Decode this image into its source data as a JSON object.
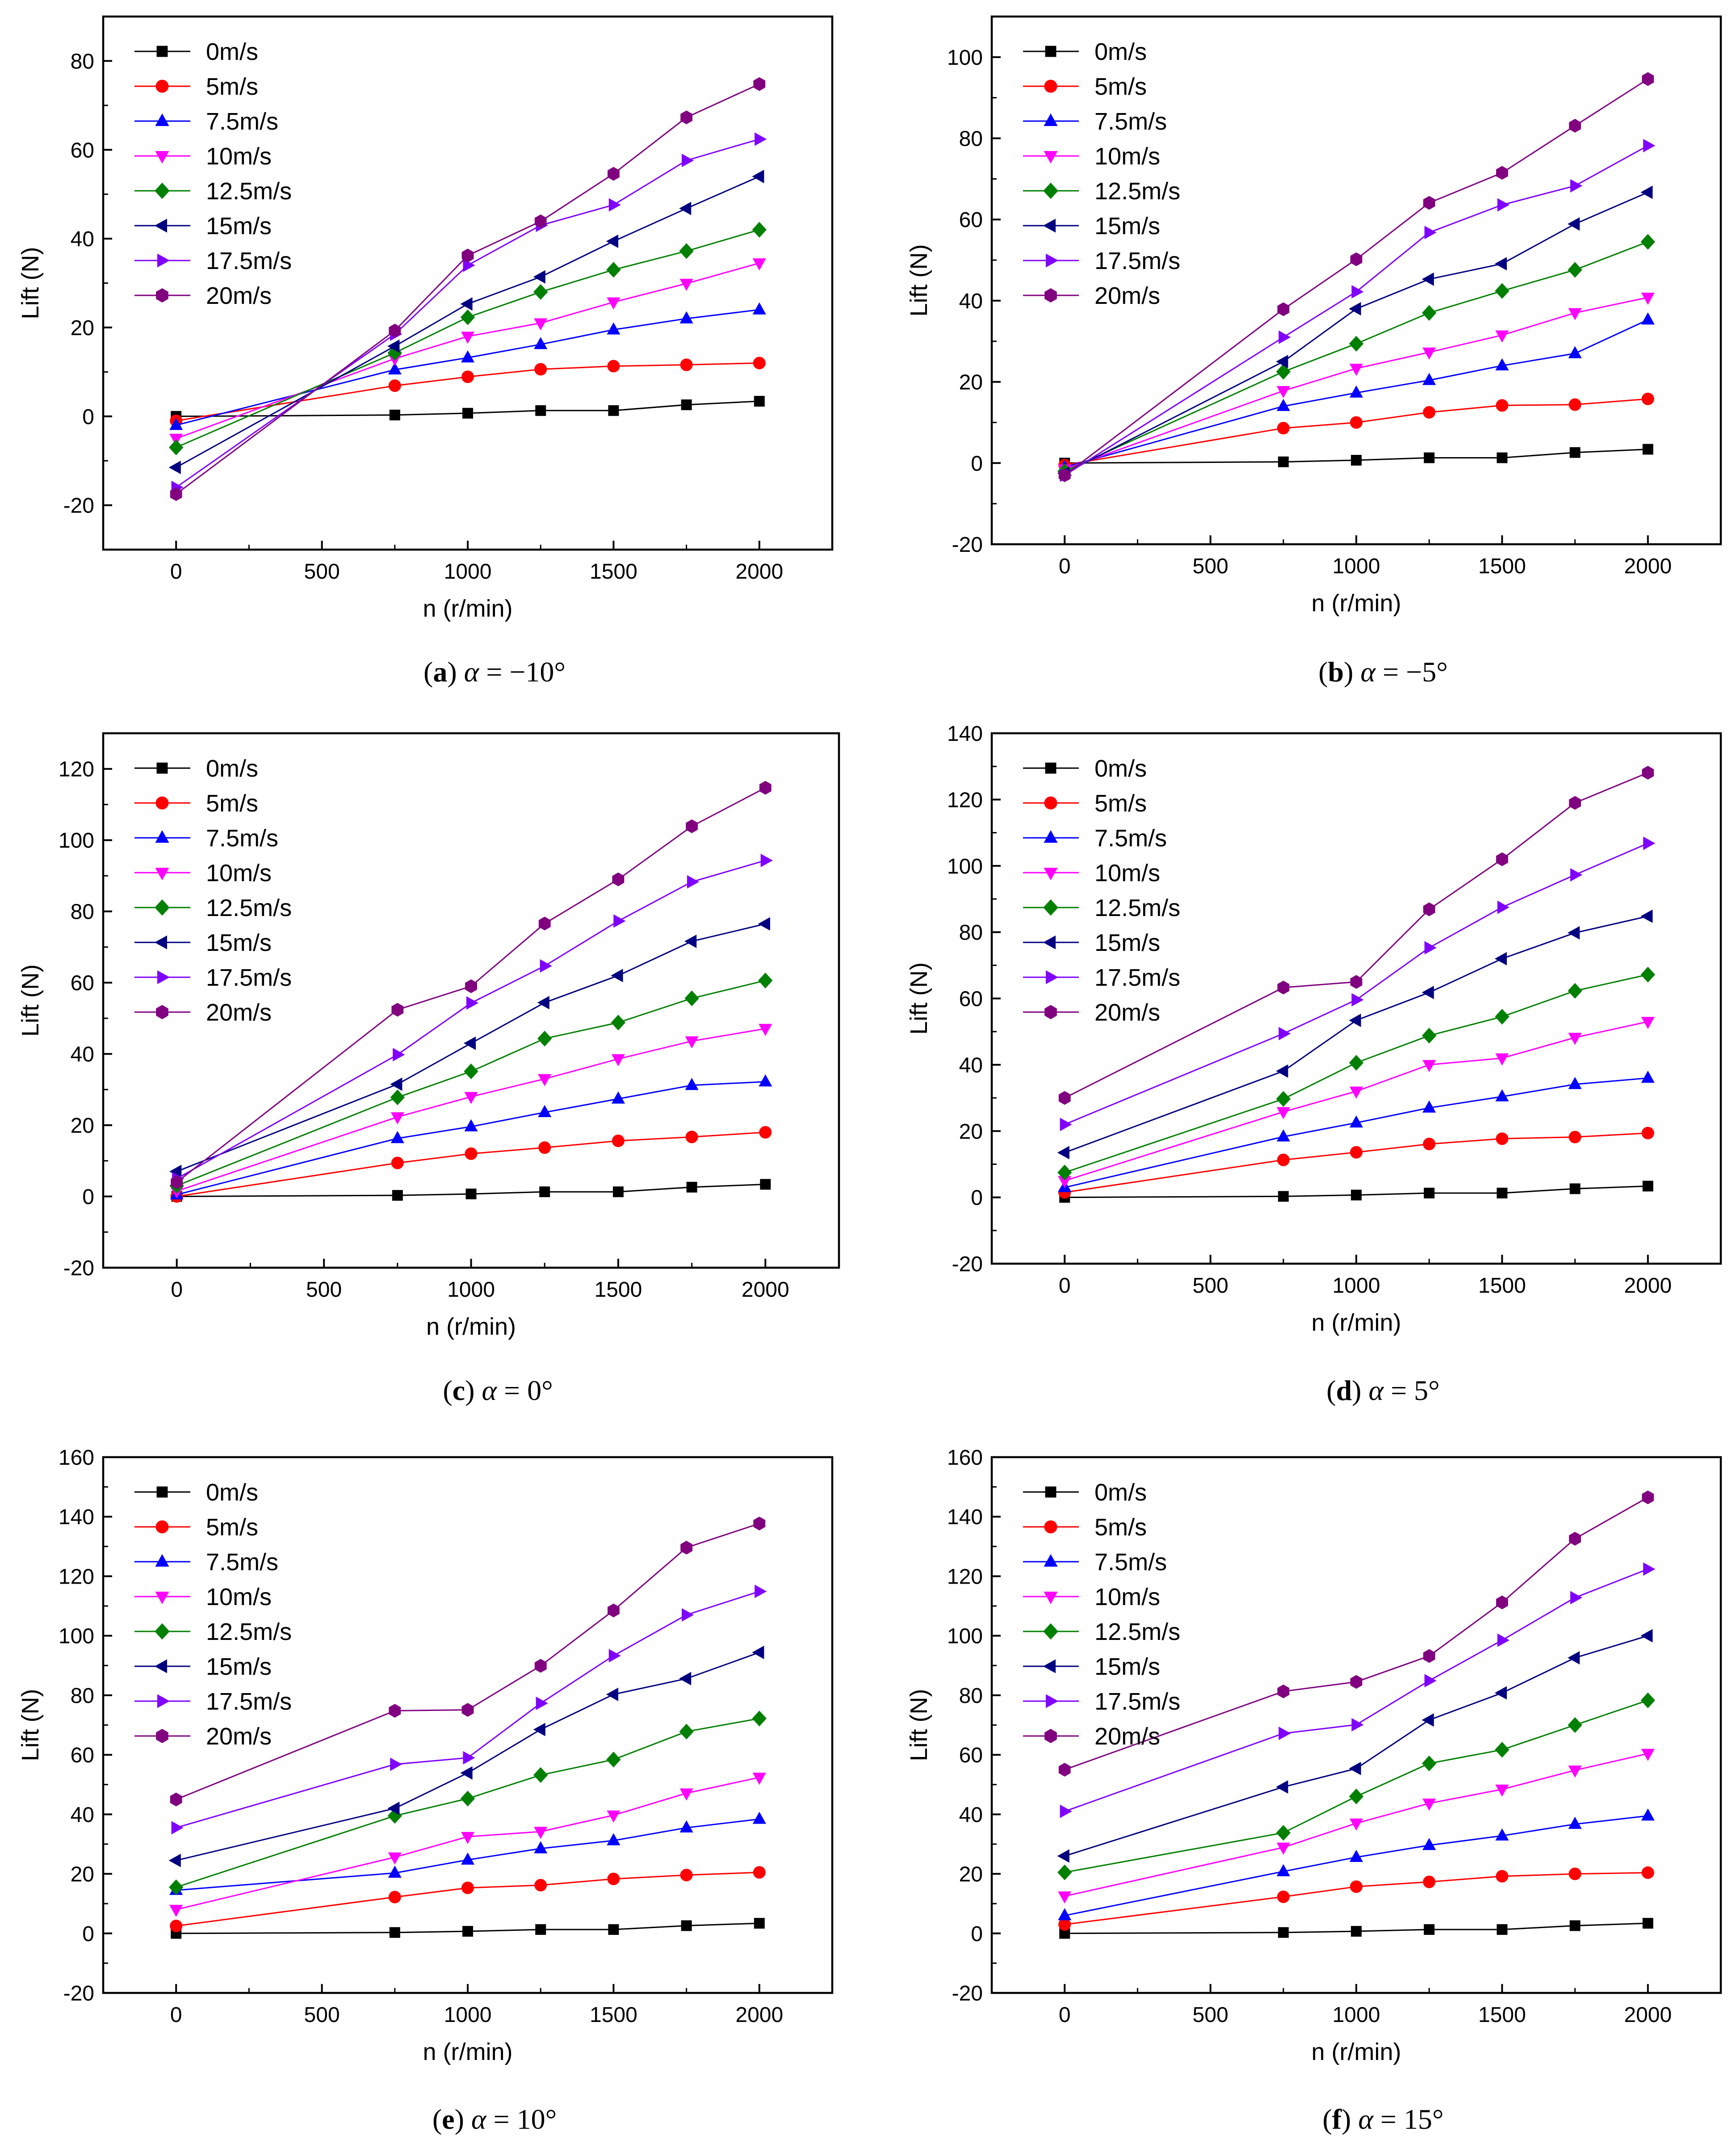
{
  "figure": {
    "x_axis_label": "n (r/min)",
    "y_axis_label": "Lift (N)",
    "legend": [
      "0m/s",
      "5m/s",
      "7.5m/s",
      "10m/s",
      "12.5m/s",
      "15m/s",
      "17.5m/s",
      "20m/s"
    ]
  },
  "series_styles": [
    {
      "name": "0m/s",
      "color": "#000000",
      "marker": "square"
    },
    {
      "name": "5m/s",
      "color": "#ff0000",
      "marker": "circle"
    },
    {
      "name": "7.5m/s",
      "color": "#0000ff",
      "marker": "triangle-up"
    },
    {
      "name": "10m/s",
      "color": "#ff00ff",
      "marker": "triangle-down"
    },
    {
      "name": "12.5m/s",
      "color": "#008000",
      "marker": "diamond"
    },
    {
      "name": "15m/s",
      "color": "#000080",
      "marker": "triangle-left"
    },
    {
      "name": "17.5m/s",
      "color": "#8000ff",
      "marker": "triangle-right"
    },
    {
      "name": "20m/s",
      "color": "#800080",
      "marker": "hexagon"
    }
  ],
  "chart_data": [
    {
      "type": "line",
      "caption": {
        "letter": "a",
        "text": "α = −10°"
      },
      "xlabel": "n (r/min)",
      "ylabel": "Lift (N)",
      "xlim": [
        -250,
        2250
      ],
      "ylim": [
        -30,
        90
      ],
      "xticks": [
        0,
        500,
        1000,
        1500,
        2000
      ],
      "yticks": [
        -20,
        0,
        20,
        40,
        60,
        80
      ],
      "legend_position": "top-left",
      "x": [
        0,
        750,
        1000,
        1250,
        1500,
        1750,
        2000
      ],
      "series": [
        {
          "name": "0m/s",
          "values": [
            0,
            0.3,
            0.7,
            1.3,
            1.3,
            2.6,
            3.4
          ]
        },
        {
          "name": "5m/s",
          "values": [
            -1,
            6.9,
            8.9,
            10.6,
            11.3,
            11.6,
            12.0
          ]
        },
        {
          "name": "7.5m/s",
          "values": [
            -2,
            10.5,
            13.2,
            16.2,
            19.5,
            22.0,
            24.0
          ]
        },
        {
          "name": "10m/s",
          "values": [
            -5,
            13.0,
            18.0,
            21.0,
            25.7,
            29.9,
            34.5
          ]
        },
        {
          "name": "12.5m/s",
          "values": [
            -7,
            14.3,
            22.3,
            28.0,
            33.0,
            37.2,
            42.0
          ]
        },
        {
          "name": "15m/s",
          "values": [
            -11.5,
            15.8,
            25.3,
            31.4,
            39.4,
            46.8,
            54.0
          ]
        },
        {
          "name": "17.5m/s",
          "values": [
            -16,
            18.5,
            34.0,
            43.0,
            47.6,
            57.6,
            62.4
          ]
        },
        {
          "name": "20m/s",
          "values": [
            -17.5,
            19.3,
            36.2,
            43.9,
            54.6,
            67.3,
            74.8
          ]
        }
      ]
    },
    {
      "type": "line",
      "caption": {
        "letter": "b",
        "text": "α = −5°"
      },
      "xlabel": "n (r/min)",
      "ylabel": "Lift (N)",
      "xlim": [
        -250,
        2250
      ],
      "ylim": [
        -20,
        110
      ],
      "xticks": [
        0,
        500,
        1000,
        1500,
        2000
      ],
      "yticks": [
        -20,
        0,
        20,
        40,
        60,
        80,
        100
      ],
      "legend_position": "top-left",
      "x": [
        0,
        750,
        1000,
        1250,
        1500,
        1750,
        2000
      ],
      "series": [
        {
          "name": "0m/s",
          "values": [
            0,
            0.3,
            0.7,
            1.3,
            1.3,
            2.6,
            3.4
          ]
        },
        {
          "name": "5m/s",
          "values": [
            -0.5,
            8.6,
            10.0,
            12.5,
            14.2,
            14.4,
            15.8
          ]
        },
        {
          "name": "7.5m/s",
          "values": [
            -1,
            14.0,
            17.3,
            20.4,
            24.0,
            27.0,
            35.3
          ]
        },
        {
          "name": "10m/s",
          "values": [
            -1.5,
            17.8,
            23.3,
            27.3,
            31.5,
            37.0,
            40.8
          ]
        },
        {
          "name": "12.5m/s",
          "values": [
            -2,
            22.5,
            29.4,
            37.0,
            42.4,
            47.6,
            54.5
          ]
        },
        {
          "name": "15m/s",
          "values": [
            -2.5,
            25.0,
            38.0,
            45.3,
            49.1,
            58.9,
            66.7
          ]
        },
        {
          "name": "17.5m/s",
          "values": [
            -3,
            31.0,
            42.2,
            56.8,
            63.6,
            68.3,
            78.2
          ]
        },
        {
          "name": "20m/s",
          "values": [
            -3,
            37.9,
            50.2,
            64.1,
            71.5,
            83.1,
            94.6
          ]
        }
      ]
    },
    {
      "type": "line",
      "caption": {
        "letter": "c",
        "text": "α = 0°"
      },
      "xlabel": "n (r/min)",
      "ylabel": "Lift (N)",
      "xlim": [
        -250,
        2250
      ],
      "ylim": [
        -20,
        130
      ],
      "xticks": [
        0,
        500,
        1000,
        1500,
        2000
      ],
      "yticks": [
        -20,
        0,
        20,
        40,
        60,
        80,
        100,
        120
      ],
      "legend_position": "top-left",
      "x": [
        0,
        750,
        1000,
        1250,
        1500,
        1750,
        2000
      ],
      "series": [
        {
          "name": "0m/s",
          "values": [
            0,
            0.3,
            0.7,
            1.3,
            1.3,
            2.6,
            3.4
          ]
        },
        {
          "name": "5m/s",
          "values": [
            0,
            9.4,
            12.0,
            13.7,
            15.6,
            16.7,
            18.0
          ]
        },
        {
          "name": "7.5m/s",
          "values": [
            0.5,
            16.3,
            19.6,
            23.6,
            27.4,
            31.2,
            32.2
          ]
        },
        {
          "name": "10m/s",
          "values": [
            1.5,
            22.3,
            28.0,
            33.0,
            38.6,
            43.6,
            47.1
          ]
        },
        {
          "name": "12.5m/s",
          "values": [
            3,
            27.8,
            35.1,
            44.3,
            48.8,
            55.6,
            60.6
          ]
        },
        {
          "name": "15m/s",
          "values": [
            7,
            31.5,
            43.0,
            54.4,
            62.0,
            71.6,
            76.5
          ]
        },
        {
          "name": "17.5m/s",
          "values": [
            5,
            39.8,
            54.3,
            64.7,
            77.3,
            88.3,
            94.3
          ]
        },
        {
          "name": "20m/s",
          "values": [
            4,
            52.4,
            59.0,
            76.6,
            89.0,
            103.9,
            114.7
          ]
        }
      ]
    },
    {
      "type": "line",
      "caption": {
        "letter": "d",
        "text": "α = 5°"
      },
      "xlabel": "n (r/min)",
      "ylabel": "Lift (N)",
      "xlim": [
        -250,
        2250
      ],
      "ylim": [
        -20,
        140
      ],
      "xticks": [
        0,
        500,
        1000,
        1500,
        2000
      ],
      "yticks": [
        -20,
        0,
        20,
        40,
        60,
        80,
        100,
        120,
        140
      ],
      "legend_position": "top-left",
      "x": [
        0,
        750,
        1000,
        1250,
        1500,
        1750,
        2000
      ],
      "series": [
        {
          "name": "0m/s",
          "values": [
            0,
            0.3,
            0.7,
            1.3,
            1.3,
            2.6,
            3.4
          ]
        },
        {
          "name": "5m/s",
          "values": [
            1.5,
            11.3,
            13.6,
            16.1,
            17.7,
            18.2,
            19.4
          ]
        },
        {
          "name": "7.5m/s",
          "values": [
            3,
            18.3,
            22.5,
            27.0,
            30.4,
            34.1,
            36.0
          ]
        },
        {
          "name": "10m/s",
          "values": [
            5,
            25.8,
            32.0,
            40.0,
            42.0,
            48.2,
            53.0
          ]
        },
        {
          "name": "12.5m/s",
          "values": [
            7.5,
            29.7,
            40.6,
            48.8,
            54.5,
            62.3,
            67.2
          ]
        },
        {
          "name": "15m/s",
          "values": [
            13.5,
            38.1,
            53.4,
            61.8,
            72.0,
            79.8,
            84.8
          ]
        },
        {
          "name": "17.5m/s",
          "values": [
            22,
            49.4,
            59.6,
            75.3,
            87.5,
            97.3,
            106.8
          ]
        },
        {
          "name": "20m/s",
          "values": [
            30,
            63.3,
            65.0,
            86.9,
            102.0,
            119.0,
            128.1
          ]
        }
      ]
    },
    {
      "type": "line",
      "caption": {
        "letter": "e",
        "text": "α = 10°"
      },
      "xlabel": "n (r/min)",
      "ylabel": "Lift (N)",
      "xlim": [
        -250,
        2250
      ],
      "ylim": [
        -20,
        160
      ],
      "xticks": [
        0,
        500,
        1000,
        1500,
        2000
      ],
      "yticks": [
        -20,
        0,
        20,
        40,
        60,
        80,
        100,
        120,
        140,
        160
      ],
      "legend_position": "top-left",
      "x": [
        0,
        750,
        1000,
        1250,
        1500,
        1750,
        2000
      ],
      "series": [
        {
          "name": "0m/s",
          "values": [
            0,
            0.3,
            0.7,
            1.3,
            1.3,
            2.6,
            3.4
          ]
        },
        {
          "name": "5m/s",
          "values": [
            2.5,
            12.2,
            15.3,
            16.2,
            18.3,
            19.6,
            20.5
          ]
        },
        {
          "name": "7.5m/s",
          "values": [
            14.5,
            20.3,
            24.7,
            28.5,
            31.2,
            35.5,
            38.4
          ]
        },
        {
          "name": "10m/s",
          "values": [
            8,
            25.6,
            32.5,
            34.2,
            39.7,
            47.1,
            52.4
          ]
        },
        {
          "name": "12.5m/s",
          "values": [
            15.5,
            39.5,
            45.3,
            53.2,
            58.4,
            67.8,
            72.2
          ]
        },
        {
          "name": "15m/s",
          "values": [
            24.5,
            42.0,
            53.9,
            68.5,
            80.3,
            85.6,
            94.4
          ]
        },
        {
          "name": "17.5m/s",
          "values": [
            35.5,
            56.8,
            59.0,
            77.3,
            93.3,
            107.0,
            114.9
          ]
        },
        {
          "name": "20m/s",
          "values": [
            45,
            74.8,
            75.1,
            89.9,
            108.5,
            129.6,
            137.7
          ]
        }
      ]
    },
    {
      "type": "line",
      "caption": {
        "letter": "f",
        "text": "α = 15°"
      },
      "xlabel": "n (r/min)",
      "ylabel": "Lift (N)",
      "xlim": [
        -250,
        2250
      ],
      "ylim": [
        -20,
        160
      ],
      "xticks": [
        0,
        500,
        1000,
        1500,
        2000
      ],
      "yticks": [
        -20,
        0,
        20,
        40,
        60,
        80,
        100,
        120,
        140,
        160
      ],
      "legend_position": "top-left",
      "x": [
        0,
        750,
        1000,
        1250,
        1500,
        1750,
        2000
      ],
      "series": [
        {
          "name": "0m/s",
          "values": [
            0,
            0.3,
            0.7,
            1.3,
            1.3,
            2.6,
            3.4
          ]
        },
        {
          "name": "5m/s",
          "values": [
            3,
            12.3,
            15.7,
            17.3,
            19.2,
            20.0,
            20.4
          ]
        },
        {
          "name": "7.5m/s",
          "values": [
            6,
            20.8,
            25.6,
            29.6,
            32.8,
            36.7,
            39.5
          ]
        },
        {
          "name": "10m/s",
          "values": [
            12.5,
            28.9,
            37.0,
            43.7,
            48.4,
            54.8,
            60.4
          ]
        },
        {
          "name": "12.5m/s",
          "values": [
            20.5,
            33.8,
            46.0,
            57.1,
            61.7,
            70.0,
            78.3
          ]
        },
        {
          "name": "15m/s",
          "values": [
            26,
            49.2,
            55.4,
            71.7,
            80.8,
            92.6,
            100.0
          ]
        },
        {
          "name": "17.5m/s",
          "values": [
            41,
            67.2,
            70.1,
            84.9,
            98.5,
            112.8,
            122.4
          ]
        },
        {
          "name": "20m/s",
          "values": [
            55,
            81.3,
            84.5,
            93.2,
            111.2,
            132.6,
            146.5
          ]
        }
      ]
    }
  ]
}
